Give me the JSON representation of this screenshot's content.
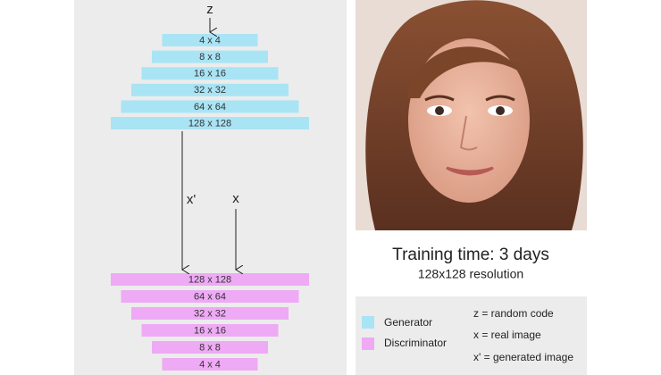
{
  "generator": {
    "input": "z",
    "layers": [
      "4 x 4",
      "8 x 8",
      "16 x 16",
      "32 x 32",
      "64 x 64",
      "128 x 128"
    ]
  },
  "arrows": {
    "generated": "x'",
    "real": "x"
  },
  "discriminator": {
    "layers": [
      "128 x 128",
      "64 x 64",
      "32 x 32",
      "16 x 16",
      "8 x 8",
      "4 x 4"
    ]
  },
  "caption": {
    "title": "Training time: 3 days",
    "subtitle": "128x128 resolution"
  },
  "legend": {
    "items": [
      "Generator",
      "Discriminator"
    ],
    "notes": [
      "z = random code",
      "x = real image",
      "x' = generated image"
    ]
  }
}
